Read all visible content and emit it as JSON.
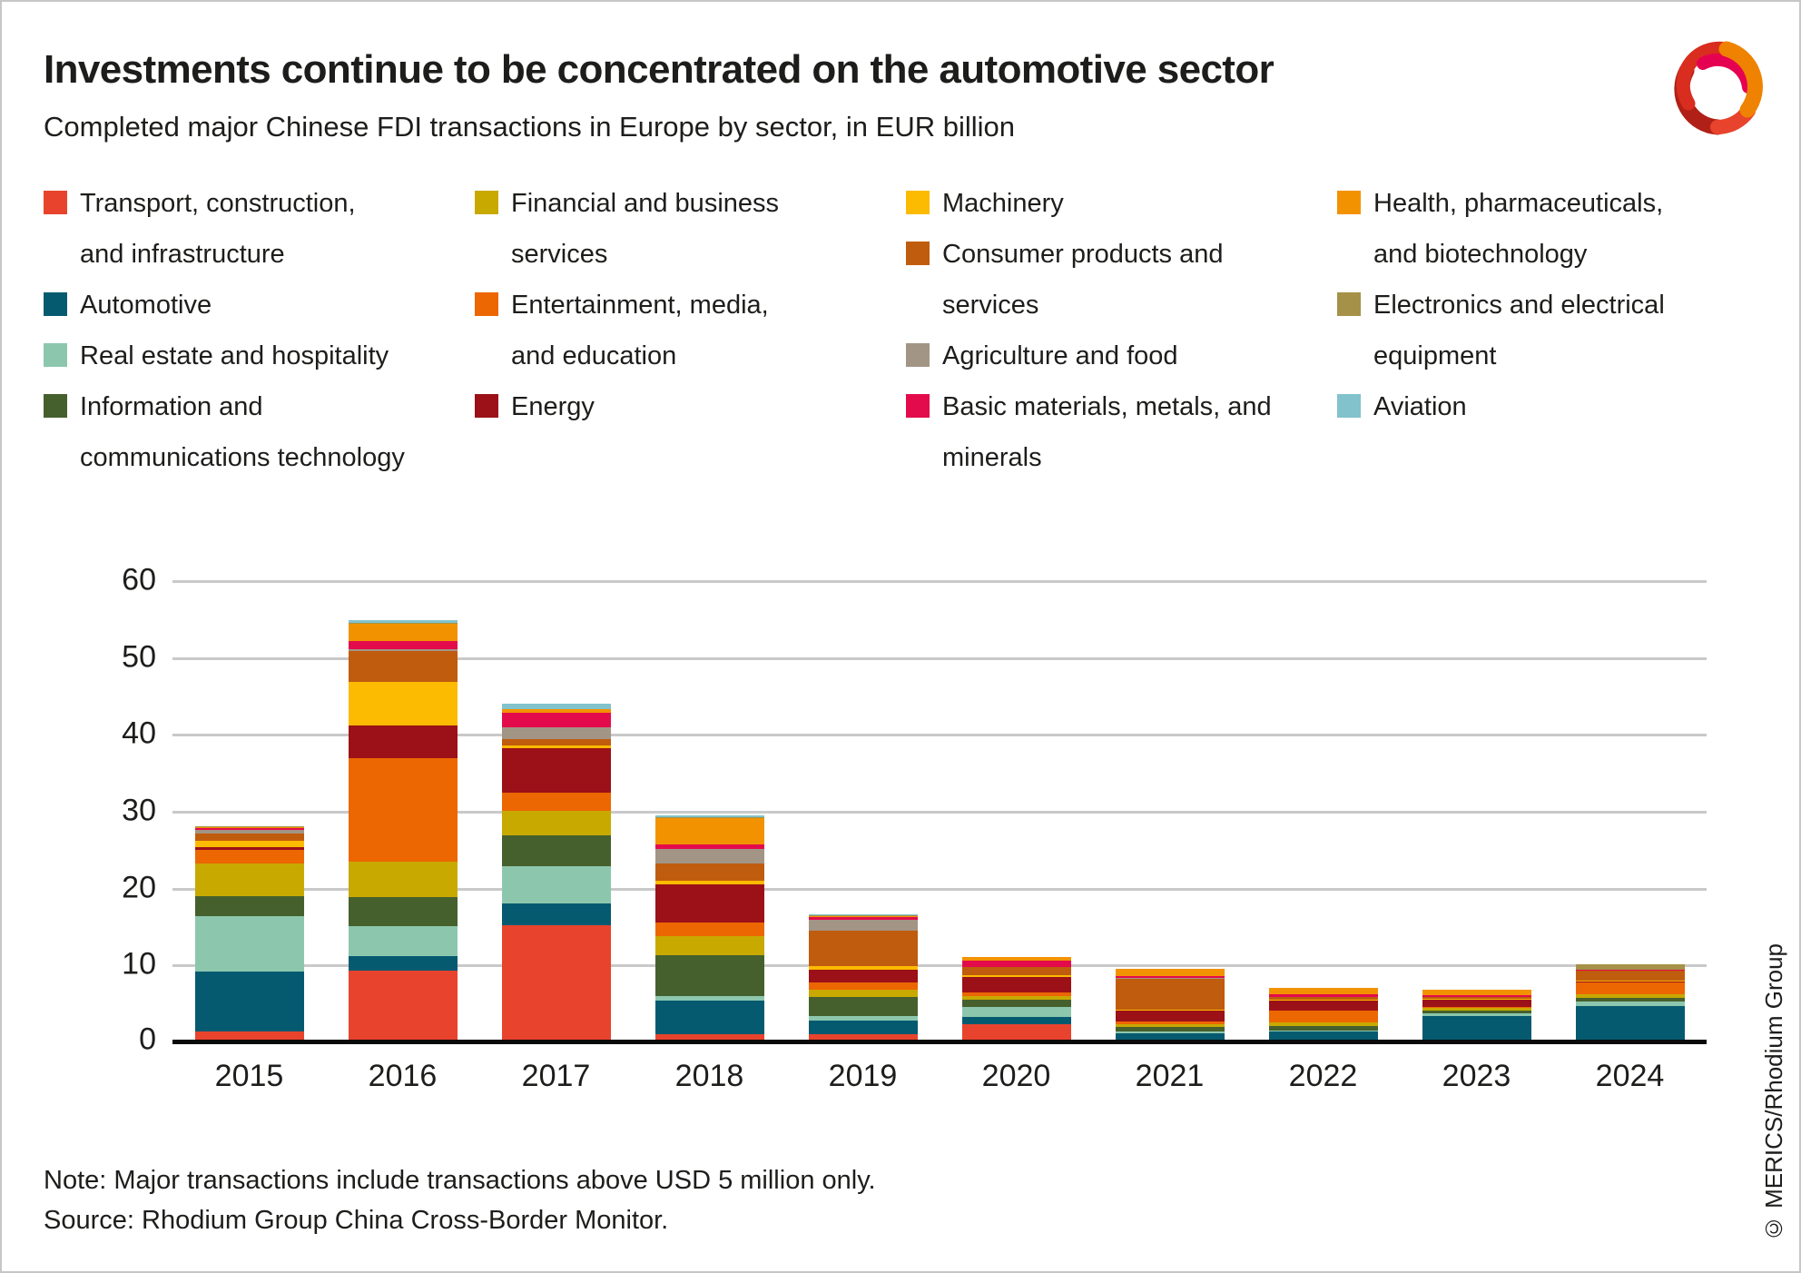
{
  "header": {
    "title": "Investments continue to be concentrated on the automotive sector",
    "subtitle": "Completed major Chinese FDI transactions in Europe by sector, in EUR billion"
  },
  "legend": {
    "columns": [
      [
        {
          "sector": "transport",
          "label": "Transport, construction,\nand infrastructure"
        },
        {
          "sector": "automotive",
          "label": "Automotive"
        },
        {
          "sector": "real_estate",
          "label": "Real estate and hospitality"
        },
        {
          "sector": "ict",
          "label": "Information and\ncommunications technology"
        }
      ],
      [
        {
          "sector": "financial",
          "label": "Financial and business\nservices"
        },
        {
          "sector": "entertainment",
          "label": "Entertainment, media,\nand education"
        },
        {
          "sector": "energy",
          "label": "Energy"
        }
      ],
      [
        {
          "sector": "machinery",
          "label": "Machinery"
        },
        {
          "sector": "consumer",
          "label": "Consumer products and\nservices"
        },
        {
          "sector": "agriculture",
          "label": "Agriculture and food"
        },
        {
          "sector": "basic_materials",
          "label": "Basic materials, metals, and\nminerals"
        }
      ],
      [
        {
          "sector": "health",
          "label": "Health, pharmaceuticals,\nand biotechnology"
        },
        {
          "sector": "electronics",
          "label": "Electronics and electrical\nequipment"
        },
        {
          "sector": "aviation",
          "label": "Aviation"
        }
      ]
    ]
  },
  "chart_data": {
    "type": "bar",
    "stacked": true,
    "title": "Investments continue to be concentrated on the automotive sector",
    "subtitle": "Completed major Chinese FDI transactions in Europe by sector, in EUR billion",
    "unit": "EUR billion",
    "categories": [
      "2015",
      "2016",
      "2017",
      "2018",
      "2019",
      "2020",
      "2021",
      "2022",
      "2023",
      "2024"
    ],
    "ylim": [
      0,
      60
    ],
    "yticks": [
      0,
      10,
      20,
      30,
      40,
      50,
      60
    ],
    "grid": true,
    "legend_position": "top",
    "series": [
      {
        "id": "transport",
        "name": "Transport, construction, and infrastructure",
        "color": "#e8432d",
        "values": [
          1.6,
          9.6,
          15.5,
          1.3,
          1.25,
          2.65,
          0.5,
          0.2,
          0.15,
          0.2
        ]
      },
      {
        "id": "automotive",
        "name": "Automotive",
        "color": "#065a70",
        "values": [
          7.9,
          1.9,
          2.8,
          4.4,
          1.8,
          0.95,
          0.9,
          1.4,
          3.5,
          4.8
        ]
      },
      {
        "id": "real_estate",
        "name": "Real estate and hospitality",
        "color": "#8cc7ad",
        "values": [
          7.2,
          3.9,
          4.85,
          0.6,
          0.6,
          1.3,
          0.3,
          0.15,
          0.4,
          0.55
        ]
      },
      {
        "id": "ict",
        "name": "Information and communications technology",
        "color": "#46602d",
        "values": [
          2.5,
          3.7,
          4.0,
          5.3,
          2.5,
          0.85,
          0.5,
          0.6,
          0.3,
          0.45
        ]
      },
      {
        "id": "financial",
        "name": "Financial and business services",
        "color": "#c8a900",
        "values": [
          4.35,
          4.7,
          3.15,
          2.5,
          0.95,
          0.5,
          0.45,
          0.5,
          0.35,
          0.55
        ]
      },
      {
        "id": "entertainment",
        "name": "Entertainment, media, and education",
        "color": "#ec6602",
        "values": [
          1.75,
          13.4,
          2.45,
          1.7,
          0.9,
          0.5,
          0.3,
          1.5,
          0.1,
          1.45
        ]
      },
      {
        "id": "energy",
        "name": "Energy",
        "color": "#9b1117",
        "values": [
          0.3,
          4.3,
          5.75,
          5.05,
          1.7,
          2.05,
          1.4,
          1.35,
          1.0,
          0.2
        ]
      },
      {
        "id": "machinery",
        "name": "Machinery",
        "color": "#fcba00",
        "values": [
          0.9,
          5.6,
          0.4,
          0.4,
          0.5,
          0.2,
          0.2,
          0.1,
          0.15,
          0.05
        ]
      },
      {
        "id": "consumer",
        "name": "Consumer products and services",
        "color": "#c05c0e",
        "values": [
          0.95,
          4.1,
          0.85,
          2.3,
          4.55,
          1.0,
          4.0,
          0.3,
          0.2,
          1.3
        ]
      },
      {
        "id": "agriculture",
        "name": "Agriculture and food",
        "color": "#a39585",
        "values": [
          0.4,
          0.15,
          1.45,
          1.9,
          1.4,
          0.05,
          0.05,
          0.1,
          0.05,
          0.05
        ]
      },
      {
        "id": "basic_materials",
        "name": "Basic materials, metals, and minerals",
        "color": "#e30b4c",
        "values": [
          0.25,
          1.1,
          1.9,
          0.6,
          0.4,
          0.85,
          0.25,
          0.3,
          0.15,
          0.05
        ]
      },
      {
        "id": "health",
        "name": "Health, pharmaceuticals, and biotechnology",
        "color": "#f39200",
        "values": [
          0.1,
          2.3,
          0.5,
          3.4,
          0.15,
          0.4,
          1.0,
          0.8,
          0.7,
          0.1
        ]
      },
      {
        "id": "electronics",
        "name": "Electronics and electrical equipment",
        "color": "#a59147",
        "values": [
          0.1,
          0.05,
          0.05,
          0.1,
          0.1,
          0.0,
          0.0,
          0.05,
          0.05,
          0.6
        ]
      },
      {
        "id": "aviation",
        "name": "Aviation",
        "color": "#82c2cc",
        "values": [
          0.1,
          0.35,
          0.65,
          0.25,
          0.05,
          0.0,
          0.0,
          0.0,
          0.0,
          0.0
        ]
      }
    ],
    "totals": [
      28.4,
      55.15,
      44.3,
      29.8,
      16.85,
      11.3,
      9.85,
      7.35,
      7.1,
      10.35
    ]
  },
  "footer": {
    "note": "Note: Major transactions include transactions above USD 5 million only.",
    "source": "Source: Rhodium Group China Cross-Border Monitor.",
    "copyright": "© MERICS/Rhodium Group"
  },
  "logo": {
    "name": "merics-logo",
    "colors": {
      "dark_red": "#b02017",
      "red": "#d92d1f",
      "bright_red": "#e8432d",
      "magenta": "#e50051",
      "orange": "#ef8200"
    }
  }
}
